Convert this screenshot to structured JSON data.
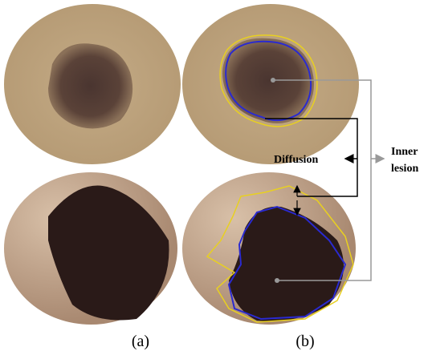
{
  "figure": {
    "panel_a": "(a)",
    "panel_b": "(b)",
    "diffusion": "Diffusion",
    "inner_lesion_line1": "Inner",
    "inner_lesion_line2": "lesion"
  }
}
